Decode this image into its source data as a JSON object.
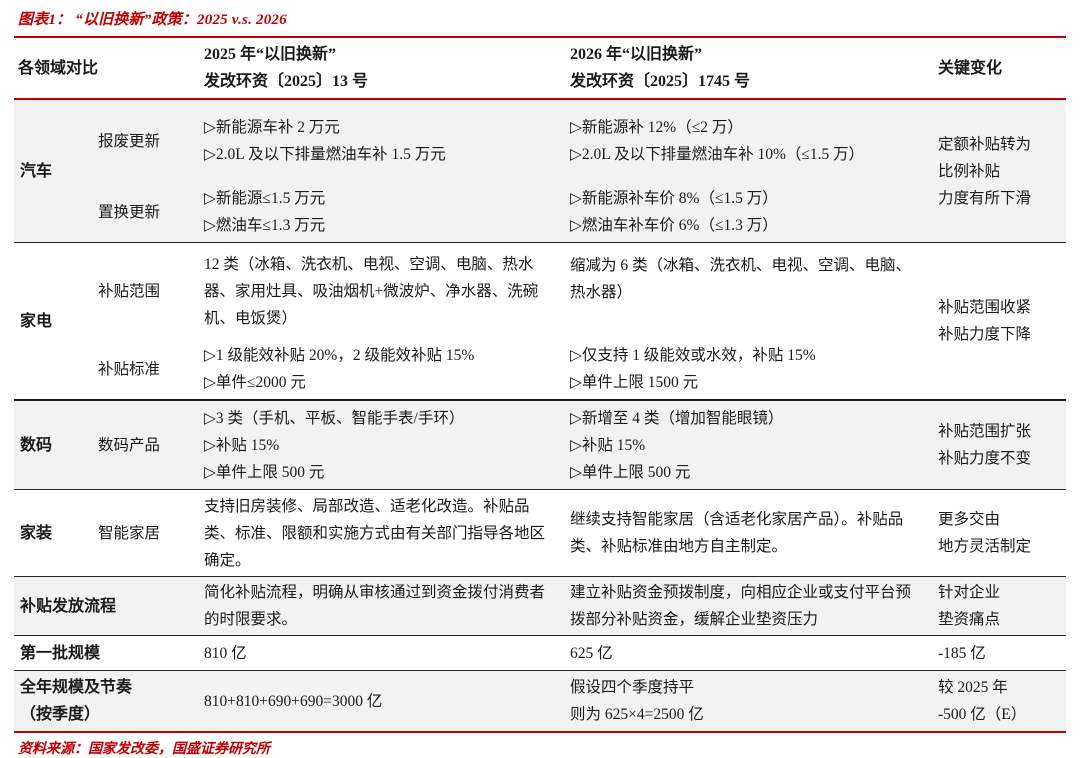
{
  "title": "图表1： “以旧换新”政策：2025 v.s. 2026",
  "colors": {
    "accent_red": "#c00000",
    "row_shade": "#f2f2f2",
    "text": "#1a1a1a"
  },
  "header": {
    "compare": "各领域对比",
    "y2025_line1": "2025 年“以旧换新”",
    "y2025_line2": "发改环资〔2025〕13 号",
    "y2026_line1": "2026 年“以旧换新”",
    "y2026_line2": "发改环资〔2025〕1745 号",
    "key": "关键变化"
  },
  "rows": {
    "auto": {
      "category": "汽车",
      "sub1": {
        "label": "报废更新",
        "c2025": [
          "▷新能源车补 2 万元",
          "▷2.0L 及以下排量燃油车补 1.5 万元"
        ],
        "c2026": [
          "▷新能源补 12%（≤2 万）",
          "▷2.0L 及以下排量燃油车补 10%（≤1.5 万）"
        ]
      },
      "sub2": {
        "label": "置换更新",
        "c2025": [
          "▷新能源≤1.5 万元",
          "▷燃油车≤1.3 万元"
        ],
        "c2026": [
          "▷新能源补车价 8%（≤1.5 万）",
          "▷燃油车补车价 6%（≤1.3 万）"
        ]
      },
      "key": [
        "定额补贴转为",
        "比例补贴",
        "力度有所下滑"
      ]
    },
    "appliance": {
      "category": "家电",
      "sub1": {
        "label": "补贴范围",
        "c2025": "12 类（冰箱、洗衣机、电视、空调、电脑、热水器、家用灶具、吸油烟机+微波炉、净水器、洗碗机、电饭煲）",
        "c2026": "缩减为 6 类（冰箱、洗衣机、电视、空调、电脑、热水器）"
      },
      "sub2": {
        "label": "补贴标准",
        "c2025": [
          "▷1 级能效补贴 20%，2 级能效补贴 15%",
          "▷单件≤2000 元"
        ],
        "c2026": [
          "▷仅支持 1 级能效或水效，补贴 15%",
          "▷单件上限 1500 元"
        ]
      },
      "key": [
        "补贴范围收紧",
        "补贴力度下降"
      ]
    },
    "digital": {
      "category": "数码",
      "sub": "数码产品",
      "c2025": [
        "▷3 类（手机、平板、智能手表/手环）",
        "▷补贴 15%",
        "▷单件上限 500 元"
      ],
      "c2026": [
        "▷新增至 4 类（增加智能眼镜）",
        "▷补贴 15%",
        "▷单件上限 500 元"
      ],
      "key": [
        "补贴范围扩张",
        "补贴力度不变"
      ]
    },
    "home": {
      "category": "家装",
      "sub": "智能家居",
      "c2025": "支持旧房装修、局部改造、适老化改造。补贴品类、标准、限额和实施方式由有关部门指导各地区确定。",
      "c2026": "继续支持智能家居（含适老化家居产品）。补贴品类、补贴标准由地方自主制定。",
      "key": [
        "更多交由",
        "地方灵活制定"
      ]
    },
    "process": {
      "label": "补贴发放流程",
      "c2025": "简化补贴流程，明确从审核通过到资金拨付消费者的时限要求。",
      "c2026": "建立补贴资金预拨制度，向相应企业或支付平台预拨部分补贴资金，缓解企业垫资压力",
      "key": [
        "针对企业",
        "垫资痛点"
      ]
    },
    "batch": {
      "label": "第一批规模",
      "c2025": "810 亿",
      "c2026": "625 亿",
      "key": "-185 亿"
    },
    "annual": {
      "label_line1": "全年规模及节奏",
      "label_line2": "（按季度）",
      "c2025": "810+810+690+690=3000 亿",
      "c2026": [
        "假设四个季度持平",
        "则为 625×4=2500 亿"
      ],
      "key": [
        "较 2025 年",
        "-500 亿（E）"
      ]
    }
  },
  "source": "资料来源：国家发改委，国盛证券研究所"
}
